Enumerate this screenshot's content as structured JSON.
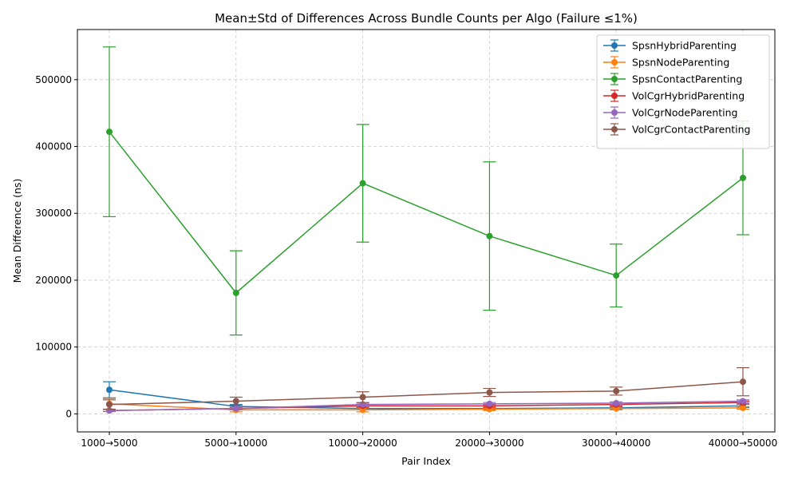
{
  "chart_data": {
    "type": "line",
    "title": "Mean±Std of Differences Across Bundle Counts per Algo (Failure ≤1%)",
    "xlabel": "Pair Index",
    "ylabel": "Mean Difference (ns)",
    "categories": [
      "1000→5000",
      "5000→10000",
      "10000→20000",
      "20000→30000",
      "30000→40000",
      "40000→50000"
    ],
    "ylim": [
      -27000,
      575000
    ],
    "yticks": [
      0,
      100000,
      200000,
      300000,
      400000,
      500000
    ],
    "grid": true,
    "legend_position": "top-right",
    "series": [
      {
        "name": "SpsnHybridParenting",
        "color": "#1f77b4",
        "values": [
          36000,
          11000,
          8000,
          8000,
          9000,
          12000
        ],
        "std": [
          12000,
          3000,
          2000,
          2000,
          2000,
          2500
        ]
      },
      {
        "name": "SpsnNodeParenting",
        "color": "#ff7f0e",
        "values": [
          15000,
          6000,
          6000,
          7000,
          8000,
          9000
        ],
        "std": [
          8000,
          3000,
          3000,
          2000,
          2000,
          2000
        ]
      },
      {
        "name": "SpsnContactParenting",
        "color": "#2ca02c",
        "values": [
          422000,
          181000,
          345000,
          266000,
          207000,
          353000
        ],
        "std": [
          127000,
          63000,
          88000,
          111000,
          47000,
          85000
        ]
      },
      {
        "name": "VolCgrHybridParenting",
        "color": "#d62728",
        "values": [
          5000,
          8000,
          12000,
          12000,
          14000,
          17000
        ],
        "std": [
          1500,
          2000,
          2000,
          2000,
          2000,
          2000
        ]
      },
      {
        "name": "VolCgrNodeParenting",
        "color": "#9467bd",
        "values": [
          5000,
          8000,
          14000,
          15000,
          16000,
          19000
        ],
        "std": [
          1500,
          2000,
          2000,
          2000,
          2000,
          2000
        ]
      },
      {
        "name": "VolCgrContactParenting",
        "color": "#8c564b",
        "values": [
          14000,
          19000,
          25000,
          32000,
          34000,
          48000
        ],
        "std": [
          7000,
          6000,
          8000,
          6000,
          6000,
          21000
        ]
      }
    ]
  }
}
